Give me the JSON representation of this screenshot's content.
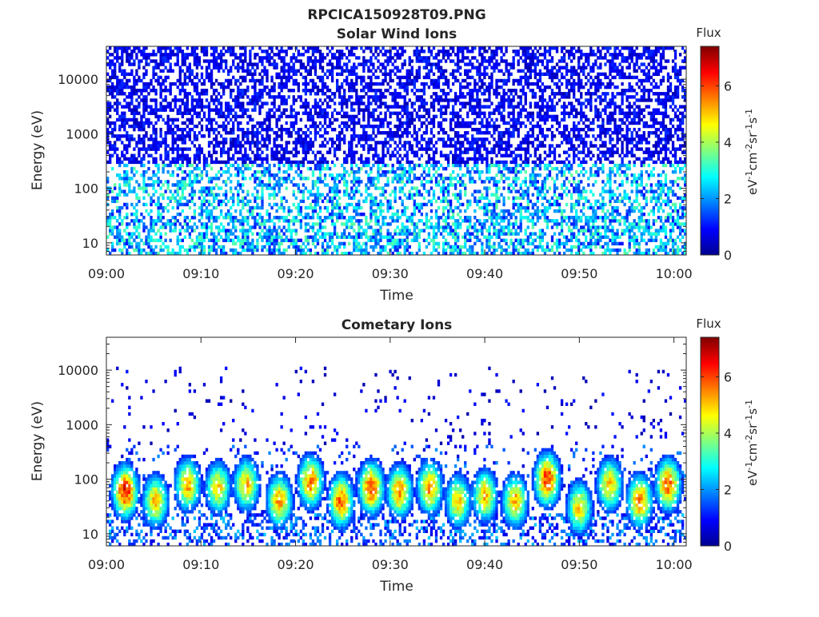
{
  "figure": {
    "file_title": "RPCICA150928T09.PNG",
    "colorbar_title": "Flux",
    "colorbar_units": "eV-1cm-2sr-1s-1",
    "colorbar_ticks": [
      0,
      2,
      4,
      6
    ],
    "colorbar_range": [
      0,
      7.4
    ],
    "colormap": [
      "#00008f",
      "#0000ff",
      "#0080ff",
      "#00ffff",
      "#80ff80",
      "#ffff00",
      "#ff8000",
      "#ff0000",
      "#800000"
    ]
  },
  "chart_data": [
    {
      "type": "heatmap",
      "title": "Solar Wind Ions",
      "xlabel": "Time",
      "ylabel": "Energy (eV)",
      "x_ticks": [
        "09:00",
        "09:10",
        "09:20",
        "09:30",
        "09:40",
        "09:50",
        "10:00"
      ],
      "x_tick_minutes": [
        0,
        10,
        20,
        30,
        40,
        50,
        60
      ],
      "xlim_minutes": [
        0,
        61.3
      ],
      "y_scale": "log",
      "y_ticks": [
        10,
        100,
        1000,
        10000
      ],
      "y_tick_labels": [
        "10",
        "100",
        "1000",
        "10000"
      ],
      "ylim": [
        6,
        40000
      ],
      "grid": false,
      "description_of_pattern": {
        "low_energy_band_eV": [
          6,
          300
        ],
        "low_energy_flux_range": [
          1,
          3.5
        ],
        "high_energy_band_eV": [
          300,
          40000
        ],
        "high_energy_flux_range": [
          0.3,
          1.3
        ],
        "coverage_high": 0.55
      }
    },
    {
      "type": "heatmap",
      "title": "Cometary Ions",
      "xlabel": "Time",
      "ylabel": "Energy (eV)",
      "x_ticks": [
        "09:00",
        "09:10",
        "09:20",
        "09:30",
        "09:40",
        "09:50",
        "10:00"
      ],
      "x_tick_minutes": [
        0,
        10,
        20,
        30,
        40,
        50,
        60
      ],
      "xlim_minutes": [
        0,
        61.3
      ],
      "y_scale": "log",
      "y_ticks": [
        10,
        100,
        1000,
        10000
      ],
      "y_tick_labels": [
        "10",
        "100",
        "1000",
        "10000"
      ],
      "ylim": [
        6,
        40000
      ],
      "grid": false,
      "bursts": [
        {
          "t_min": 2.0,
          "peak_eV": 60,
          "peak_flux": 6.6
        },
        {
          "t_min": 5.2,
          "peak_eV": 40,
          "peak_flux": 5.2
        },
        {
          "t_min": 8.6,
          "peak_eV": 80,
          "peak_flux": 5.4
        },
        {
          "t_min": 11.8,
          "peak_eV": 70,
          "peak_flux": 5.0
        },
        {
          "t_min": 14.8,
          "peak_eV": 80,
          "peak_flux": 5.2
        },
        {
          "t_min": 18.3,
          "peak_eV": 40,
          "peak_flux": 5.4
        },
        {
          "t_min": 21.6,
          "peak_eV": 90,
          "peak_flux": 5.8
        },
        {
          "t_min": 24.8,
          "peak_eV": 40,
          "peak_flux": 5.8
        },
        {
          "t_min": 28.0,
          "peak_eV": 70,
          "peak_flux": 6.2
        },
        {
          "t_min": 31.0,
          "peak_eV": 60,
          "peak_flux": 5.6
        },
        {
          "t_min": 34.2,
          "peak_eV": 70,
          "peak_flux": 5.6
        },
        {
          "t_min": 37.2,
          "peak_eV": 40,
          "peak_flux": 5.0
        },
        {
          "t_min": 40.0,
          "peak_eV": 50,
          "peak_flux": 5.2
        },
        {
          "t_min": 43.2,
          "peak_eV": 40,
          "peak_flux": 5.4
        },
        {
          "t_min": 46.6,
          "peak_eV": 100,
          "peak_flux": 6.4
        },
        {
          "t_min": 50.0,
          "peak_eV": 30,
          "peak_flux": 5.0
        },
        {
          "t_min": 53.2,
          "peak_eV": 80,
          "peak_flux": 5.2
        },
        {
          "t_min": 56.4,
          "peak_eV": 40,
          "peak_flux": 5.8
        },
        {
          "t_min": 59.4,
          "peak_eV": 80,
          "peak_flux": 6.0
        }
      ]
    }
  ]
}
